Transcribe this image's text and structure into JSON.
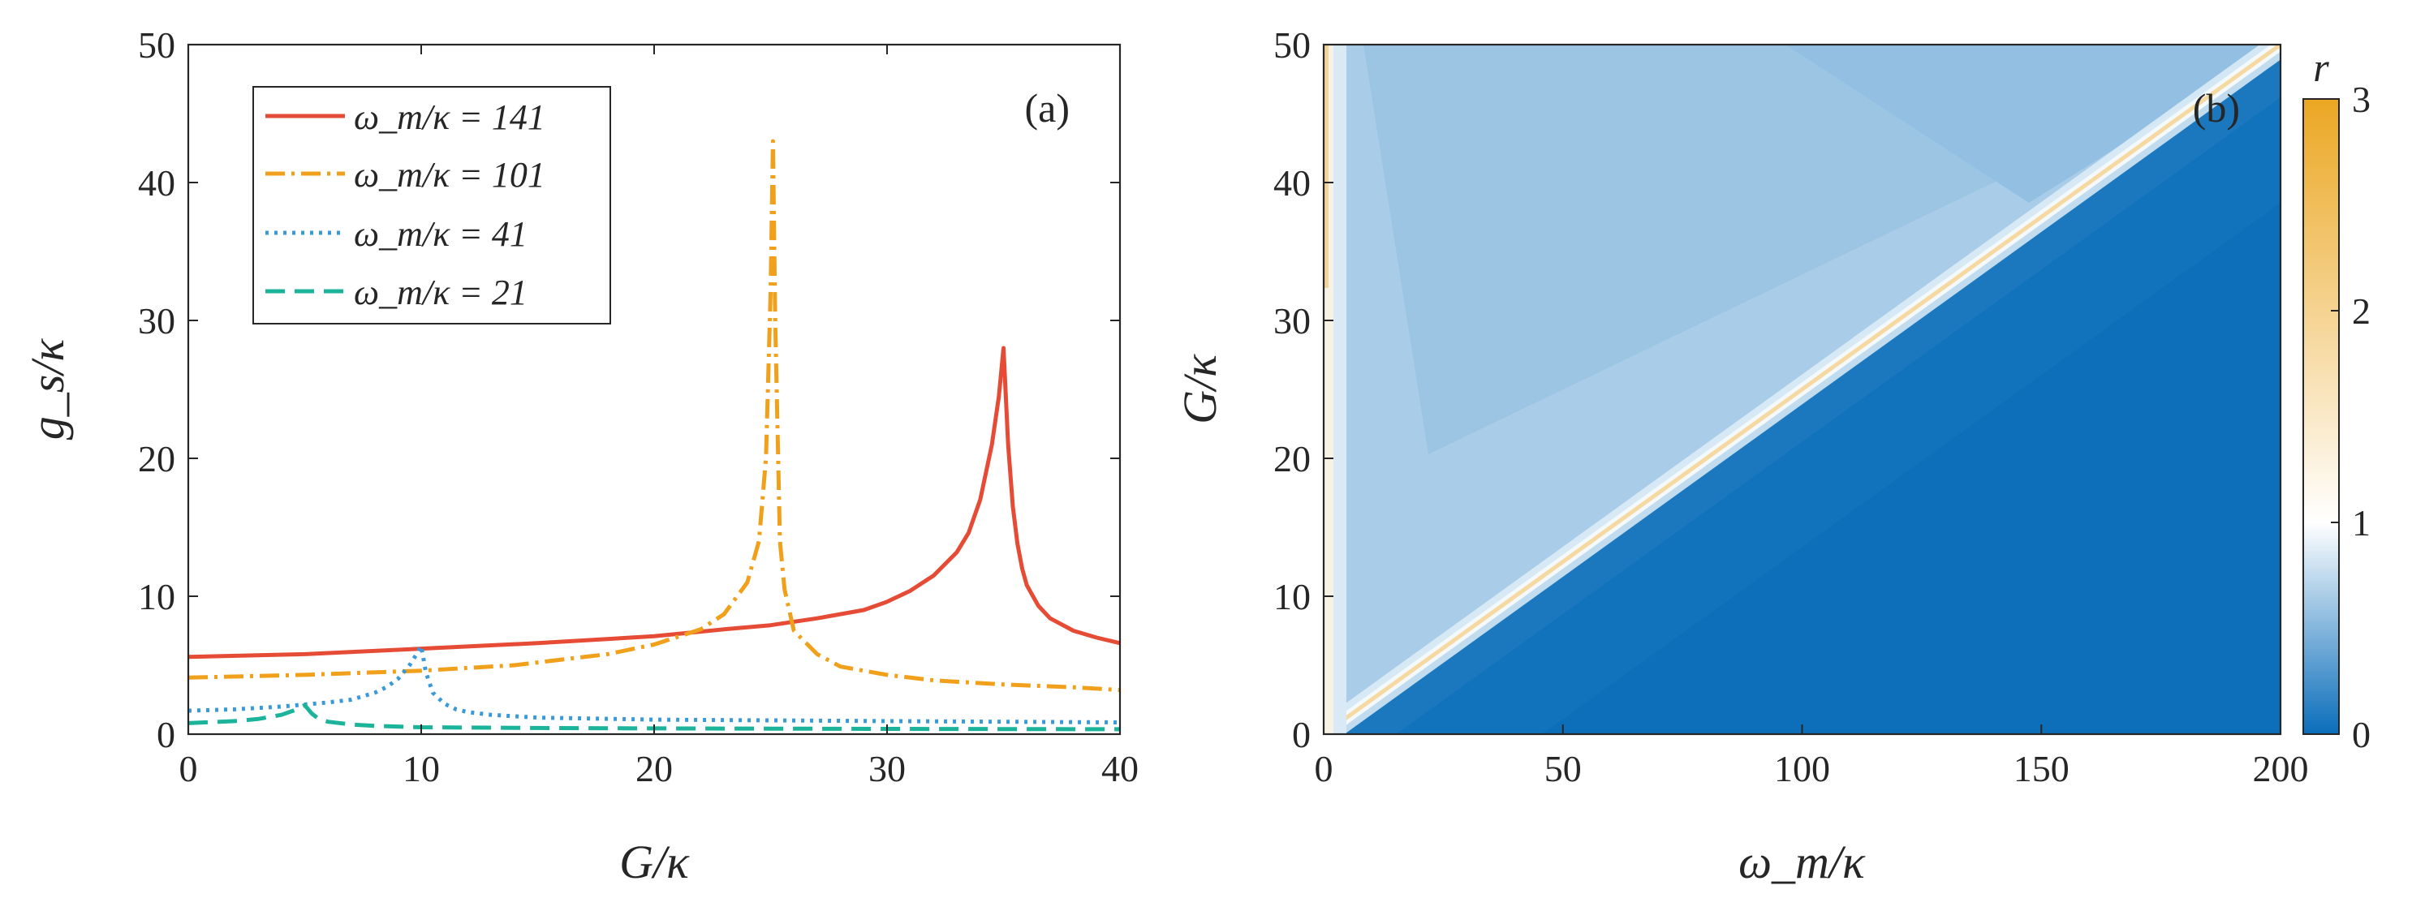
{
  "chart_data": [
    {
      "type": "line",
      "panel_label": "(a)",
      "xlabel": "G/κ",
      "ylabel": "g_s/κ",
      "xlim": [
        0,
        40
      ],
      "ylim": [
        0,
        50
      ],
      "xticks": [
        "0",
        "10",
        "20",
        "30",
        "40"
      ],
      "yticks": [
        "0",
        "10",
        "20",
        "30",
        "40",
        "50"
      ],
      "legend_position": "top-left",
      "series": [
        {
          "name": "ω_m/κ = 141",
          "color": "#e64b35",
          "style": "solid",
          "x": [
            0,
            5,
            10,
            15,
            20,
            23,
            25,
            27,
            29,
            30,
            31,
            32,
            33,
            33.5,
            34,
            34.5,
            34.8,
            35.0,
            35.2,
            35.4,
            35.6,
            35.8,
            36,
            36.5,
            37,
            38,
            39,
            40
          ],
          "y": [
            5.6,
            5.8,
            6.2,
            6.6,
            7.1,
            7.6,
            7.9,
            8.4,
            9.0,
            9.6,
            10.4,
            11.5,
            13.2,
            14.6,
            17.0,
            21.0,
            24.5,
            28.0,
            21.0,
            16.5,
            13.8,
            12.0,
            10.8,
            9.3,
            8.4,
            7.5,
            7.0,
            6.6
          ]
        },
        {
          "name": "ω_m/κ = 101",
          "color": "#f0a01a",
          "style": "dashdot",
          "x": [
            0,
            5,
            10,
            14,
            18,
            20,
            22,
            23,
            24,
            24.5,
            24.8,
            25.0,
            25.1,
            25.2,
            25.4,
            25.6,
            26,
            27,
            28,
            30,
            32,
            35,
            38,
            40
          ],
          "y": [
            4.1,
            4.3,
            4.6,
            5.0,
            5.8,
            6.5,
            7.6,
            8.7,
            11.0,
            14.0,
            20.0,
            32.0,
            43.0,
            30.0,
            14.0,
            10.5,
            7.5,
            5.8,
            4.9,
            4.3,
            3.9,
            3.6,
            3.4,
            3.2
          ]
        },
        {
          "name": "ω_m/κ = 41",
          "color": "#3a9ad9",
          "style": "dotted",
          "x": [
            0,
            2,
            4,
            6,
            7,
            8,
            8.5,
            9,
            9.5,
            9.8,
            10.0,
            10.2,
            10.5,
            11,
            11.5,
            12,
            13,
            15,
            20,
            25,
            30,
            35,
            40
          ],
          "y": [
            1.7,
            1.8,
            2.0,
            2.3,
            2.5,
            3.0,
            3.4,
            4.0,
            5.0,
            5.8,
            6.4,
            4.5,
            3.0,
            2.2,
            1.8,
            1.6,
            1.4,
            1.2,
            1.05,
            1.0,
            0.95,
            0.9,
            0.85
          ]
        },
        {
          "name": "ω_m/κ = 21",
          "color": "#1bb39a",
          "style": "dashed",
          "x": [
            0,
            2,
            3,
            4,
            4.5,
            5.0,
            5.3,
            5.6,
            6,
            7,
            8,
            10,
            15,
            20,
            25,
            30,
            35,
            40
          ],
          "y": [
            0.8,
            0.95,
            1.1,
            1.4,
            1.7,
            2.1,
            1.5,
            1.1,
            0.9,
            0.7,
            0.6,
            0.5,
            0.45,
            0.42,
            0.4,
            0.38,
            0.37,
            0.36
          ]
        }
      ]
    },
    {
      "type": "heatmap",
      "panel_label": "(b)",
      "xlabel": "ω_m/κ",
      "ylabel": "G/κ",
      "xlim": [
        0,
        200
      ],
      "ylim": [
        0,
        50
      ],
      "xticks": [
        "0",
        "50",
        "100",
        "150",
        "200"
      ],
      "yticks": [
        "0",
        "10",
        "20",
        "30",
        "40",
        "50"
      ],
      "colorbar": {
        "label": "r",
        "range": [
          0,
          3
        ],
        "ticks": [
          "0",
          "1",
          "2",
          "3"
        ],
        "colors": [
          {
            "value": 0,
            "color": "#0a6dba"
          },
          {
            "value": 1,
            "color": "#ffffff"
          },
          {
            "value": 3,
            "color": "#eba723"
          }
        ]
      },
      "description_values": {
        "ridge_line": "G/κ = ω_m/(4κ)",
        "ridge_value": 2.0,
        "above_ridge_value_range": [
          0.55,
          0.85
        ],
        "below_ridge_value_range": [
          0.0,
          0.35
        ]
      }
    }
  ]
}
